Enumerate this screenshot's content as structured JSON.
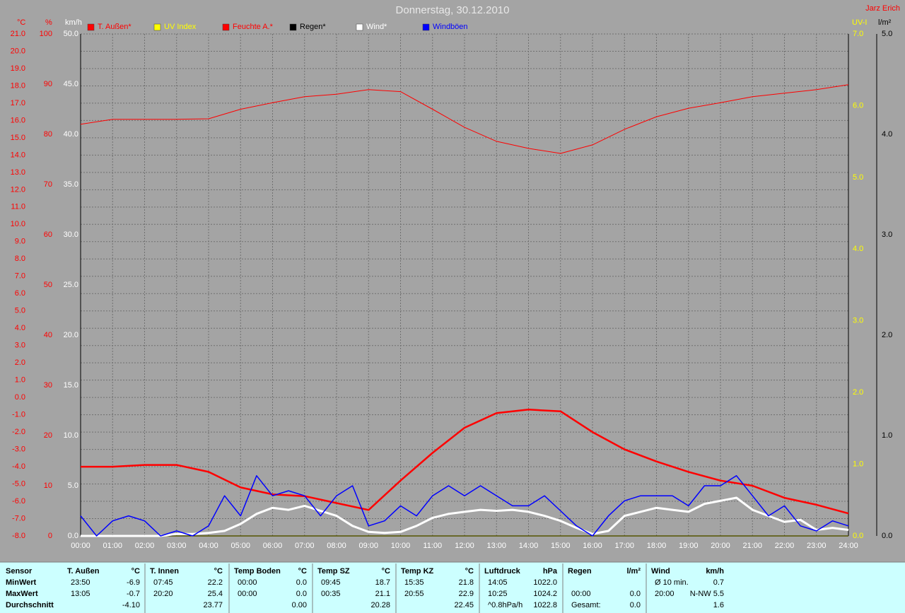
{
  "chart_data": {
    "type": "line",
    "title": "Donnerstag, 30.12.2010",
    "annotation": "Jarz Erich",
    "grid": true,
    "xlim": [
      0,
      24
    ],
    "xticks": [
      {
        "value": 0,
        "label": "00:00"
      },
      {
        "value": 1,
        "label": "01:00"
      },
      {
        "value": 2,
        "label": "02:00"
      },
      {
        "value": 3,
        "label": "03:00"
      },
      {
        "value": 4,
        "label": "04:00"
      },
      {
        "value": 5,
        "label": "05:00"
      },
      {
        "value": 6,
        "label": "06:00"
      },
      {
        "value": 7,
        "label": "07:00"
      },
      {
        "value": 8,
        "label": "08:00"
      },
      {
        "value": 9,
        "label": "09:00"
      },
      {
        "value": 10,
        "label": "10:00"
      },
      {
        "value": 11,
        "label": "11:00"
      },
      {
        "value": 12,
        "label": "12:00"
      },
      {
        "value": 13,
        "label": "13:00"
      },
      {
        "value": 14,
        "label": "14:00"
      },
      {
        "value": 15,
        "label": "15:00"
      },
      {
        "value": 16,
        "label": "16:00"
      },
      {
        "value": 17,
        "label": "17:00"
      },
      {
        "value": 18,
        "label": "18:00"
      },
      {
        "value": 19,
        "label": "19:00"
      },
      {
        "value": 20,
        "label": "20:00"
      },
      {
        "value": 21,
        "label": "21:00"
      },
      {
        "value": 22,
        "label": "22:00"
      },
      {
        "value": 23,
        "label": "23:00"
      },
      {
        "value": 24,
        "label": "24:00"
      }
    ],
    "axes": [
      {
        "label": "°C",
        "color": "#ff0000",
        "lim": [
          -8,
          21
        ],
        "ticks": [
          {
            "value": -8,
            "label": "-8.0"
          },
          {
            "value": -7,
            "label": "-7.0"
          },
          {
            "value": -6,
            "label": "-6.0"
          },
          {
            "value": -5,
            "label": "-5.0"
          },
          {
            "value": -4,
            "label": "-4.0"
          },
          {
            "value": -3,
            "label": "-3.0"
          },
          {
            "value": -2,
            "label": "-2.0"
          },
          {
            "value": -1,
            "label": "-1.0"
          },
          {
            "value": 0,
            "label": "0.0"
          },
          {
            "value": 1,
            "label": "1.0"
          },
          {
            "value": 2,
            "label": "2.0"
          },
          {
            "value": 3,
            "label": "3.0"
          },
          {
            "value": 4,
            "label": "4.0"
          },
          {
            "value": 5,
            "label": "5.0"
          },
          {
            "value": 6,
            "label": "6.0"
          },
          {
            "value": 7,
            "label": "7.0"
          },
          {
            "value": 8,
            "label": "8.0"
          },
          {
            "value": 9,
            "label": "9.0"
          },
          {
            "value": 10,
            "label": "10.0"
          },
          {
            "value": 11,
            "label": "11.0"
          },
          {
            "value": 12,
            "label": "12.0"
          },
          {
            "value": 13,
            "label": "13.0"
          },
          {
            "value": 14,
            "label": "14.0"
          },
          {
            "value": 15,
            "label": "15.0"
          },
          {
            "value": 16,
            "label": "16.0"
          },
          {
            "value": 17,
            "label": "17.0"
          },
          {
            "value": 18,
            "label": "18.0"
          },
          {
            "value": 19,
            "label": "19.0"
          },
          {
            "value": 20,
            "label": "20.0"
          },
          {
            "value": 21,
            "label": "21.0"
          }
        ]
      },
      {
        "label": "%",
        "color": "#ff0000",
        "lim": [
          0,
          100
        ],
        "ticks": [
          0,
          10,
          20,
          30,
          40,
          50,
          60,
          70,
          80,
          90,
          100
        ]
      },
      {
        "label": "km/h",
        "color": "#ffffff",
        "lim": [
          0,
          50
        ],
        "ticks": [
          {
            "value": 0,
            "label": "0.0"
          },
          {
            "value": 5,
            "label": "5.0"
          },
          {
            "value": 10,
            "label": "10.0"
          },
          {
            "value": 15,
            "label": "15.0"
          },
          {
            "value": 20,
            "label": "20.0"
          },
          {
            "value": 25,
            "label": "25.0"
          },
          {
            "value": 30,
            "label": "30.0"
          },
          {
            "value": 35,
            "label": "35.0"
          },
          {
            "value": 40,
            "label": "40.0"
          },
          {
            "value": 45,
            "label": "45.0"
          },
          {
            "value": 50,
            "label": "50.0"
          }
        ]
      },
      {
        "label": "UV-I",
        "color": "#ffff00",
        "lim": [
          0,
          7
        ],
        "ticks": [
          {
            "value": 0,
            "label": "0.0"
          },
          {
            "value": 1,
            "label": "1.0"
          },
          {
            "value": 2,
            "label": "2.0"
          },
          {
            "value": 3,
            "label": "3.0"
          },
          {
            "value": 4,
            "label": "4.0"
          },
          {
            "value": 5,
            "label": "5.0"
          },
          {
            "value": 6,
            "label": "6.0"
          },
          {
            "value": 7,
            "label": "7.0"
          }
        ]
      },
      {
        "label": "l/m²",
        "color": "#000000",
        "lim": [
          0,
          5
        ],
        "ticks": [
          {
            "value": 0,
            "label": "0.0"
          },
          {
            "value": 1,
            "label": "1.0"
          },
          {
            "value": 2,
            "label": "2.0"
          },
          {
            "value": 3,
            "label": "3.0"
          },
          {
            "value": 4,
            "label": "4.0"
          },
          {
            "value": 5,
            "label": "5.0"
          }
        ]
      }
    ],
    "series": [
      {
        "name": "T. Außen*",
        "color": "#ff0000",
        "axis": 0,
        "width": 2.5,
        "x": [
          0,
          1,
          2,
          3,
          4,
          5,
          6,
          7,
          8,
          9,
          10,
          11,
          12,
          13,
          14,
          15,
          16,
          17,
          18,
          19,
          20,
          21,
          22,
          23,
          24
        ],
        "values": [
          -4.0,
          -4.0,
          -3.9,
          -3.9,
          -4.3,
          -5.2,
          -5.6,
          -5.7,
          -6.1,
          -6.5,
          -4.8,
          -3.2,
          -1.75,
          -0.9,
          -0.7,
          -0.8,
          -2.0,
          -3.0,
          -3.7,
          -4.3,
          -4.8,
          -5.1,
          -5.8,
          -6.2,
          -6.7
        ]
      },
      {
        "name": "UV Index",
        "color": "#ffff00",
        "axis": 3,
        "width": 1.5,
        "x": [
          0,
          24
        ],
        "values": [
          0,
          0
        ]
      },
      {
        "name": "Feuchte A.*",
        "color": "#ff0000",
        "axis": 1,
        "width": 1,
        "x": [
          0,
          1,
          2,
          3,
          4,
          5,
          6,
          7,
          8,
          9,
          10,
          11,
          12,
          13,
          14,
          15,
          16,
          17,
          18,
          19,
          20,
          21,
          22,
          23,
          24
        ],
        "values": [
          82.0,
          83.0,
          83.0,
          83.0,
          83.1,
          85.0,
          86.3,
          87.5,
          88.0,
          88.9,
          88.5,
          85.0,
          81.4,
          78.6,
          77.2,
          76.2,
          77.9,
          81.0,
          83.5,
          85.2,
          86.3,
          87.5,
          88.2,
          88.9,
          89.9
        ]
      },
      {
        "name": "Regen*",
        "color": "#000000",
        "axis": 4,
        "width": 1,
        "x": [
          0,
          24
        ],
        "values": [
          0,
          0
        ]
      },
      {
        "name": "Wind*",
        "color": "#ffffff",
        "axis": 2,
        "width": 3,
        "x": [
          0,
          0.5,
          1,
          1.5,
          2,
          2.5,
          3,
          3.5,
          4,
          4.5,
          5,
          5.5,
          6,
          6.5,
          7,
          7.5,
          8,
          8.5,
          9,
          9.5,
          10,
          10.5,
          11,
          11.5,
          12,
          12.5,
          13,
          13.5,
          14,
          14.5,
          15,
          15.5,
          16,
          16.5,
          17,
          17.5,
          18,
          18.5,
          19,
          19.5,
          20,
          20.5,
          21,
          21.5,
          22,
          22.5,
          23,
          23.5,
          24
        ],
        "values": [
          0,
          0,
          0,
          0,
          0,
          0,
          0.2,
          0.2,
          0.3,
          0.5,
          1.2,
          2.2,
          2.8,
          2.6,
          3.0,
          2.5,
          2.0,
          1.0,
          0.4,
          0.3,
          0.4,
          1.0,
          1.8,
          2.2,
          2.4,
          2.6,
          2.5,
          2.6,
          2.4,
          2.0,
          1.5,
          0.8,
          0.2,
          0.5,
          2.0,
          2.4,
          2.8,
          2.6,
          2.4,
          3.2,
          3.5,
          3.8,
          2.6,
          2.0,
          1.4,
          1.6,
          0.6,
          0.8,
          0.6
        ]
      },
      {
        "name": "Windböen",
        "color": "#0000ff",
        "axis": 2,
        "width": 1.5,
        "x": [
          0,
          0.5,
          1,
          1.5,
          2,
          2.5,
          3,
          3.5,
          4,
          4.5,
          5,
          5.5,
          6,
          6.5,
          7,
          7.5,
          8,
          8.5,
          9,
          9.5,
          10,
          10.5,
          11,
          11.5,
          12,
          12.5,
          13,
          13.5,
          14,
          14.5,
          15,
          15.5,
          16,
          16.5,
          17,
          17.5,
          18,
          18.5,
          19,
          19.5,
          20,
          20.5,
          21,
          21.5,
          22,
          22.5,
          23,
          23.5,
          24
        ],
        "values": [
          2,
          0,
          1.5,
          2,
          1.5,
          0,
          0.5,
          0,
          1,
          4,
          2,
          6,
          4,
          4.5,
          4,
          2,
          4,
          5,
          1,
          1.5,
          3,
          2,
          4,
          5,
          4,
          5,
          4,
          3,
          3,
          4,
          2.5,
          1,
          0,
          2,
          3.5,
          4,
          4,
          4,
          3,
          5,
          5,
          6,
          4,
          2,
          3,
          1,
          0.5,
          1.5,
          1
        ]
      }
    ]
  },
  "table": {
    "row_labels": [
      "Sensor",
      "MinWert",
      "MaxWert",
      "Durchschnitt"
    ],
    "columns": [
      {
        "name": "T. Außen",
        "unit": "°C",
        "rows": [
          [
            "23:50",
            "-6.9"
          ],
          [
            "13:05",
            "-0.7"
          ],
          [
            null,
            "-4.10"
          ]
        ]
      },
      {
        "name": "T. Innen",
        "unit": "°C",
        "rows": [
          [
            "07:45",
            "22.2"
          ],
          [
            "20:20",
            "25.4"
          ],
          [
            null,
            "23.77"
          ]
        ]
      },
      {
        "name": "Temp Boden",
        "unit": "°C",
        "rows": [
          [
            "00:00",
            "0.0"
          ],
          [
            "00:00",
            "0.0"
          ],
          [
            null,
            "0.00"
          ]
        ]
      },
      {
        "name": "Temp SZ",
        "unit": "°C",
        "rows": [
          [
            "09:45",
            "18.7"
          ],
          [
            "00:35",
            "21.1"
          ],
          [
            null,
            "20.28"
          ]
        ]
      },
      {
        "name": "Temp KZ",
        "unit": "°C",
        "rows": [
          [
            "15:35",
            "21.8"
          ],
          [
            "20:55",
            "22.9"
          ],
          [
            null,
            "22.45"
          ]
        ]
      },
      {
        "name": "Luftdruck",
        "unit": "hPa",
        "rows": [
          [
            "14:05",
            "1022.0"
          ],
          [
            "10:25",
            "1024.2"
          ],
          [
            "^0.8hPa/h",
            "1022.8"
          ]
        ]
      },
      {
        "name": "Regen",
        "unit": "l/m²",
        "rows": [
          [
            null,
            null
          ],
          [
            "00:00",
            "0.0"
          ],
          [
            "Gesamt:",
            "0.0"
          ]
        ]
      },
      {
        "name": "Wind",
        "unit": "km/h",
        "rows": [
          [
            "Ø 10 min.",
            "0.7"
          ],
          [
            "20:00",
            "N-NW 5.5"
          ],
          [
            null,
            "1.6"
          ]
        ]
      }
    ]
  }
}
